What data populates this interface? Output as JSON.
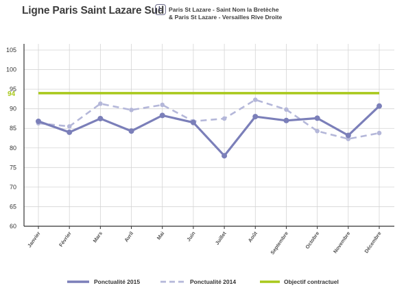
{
  "header": {
    "title": "Ligne Paris Saint Lazare Sud",
    "line_badge": "L",
    "route_1": "Paris St Lazare - Saint Nom la Bretèche",
    "route_2": "& Paris St Lazare - Versailles Rive Droite"
  },
  "chart_data": {
    "type": "line",
    "title": "Ligne Paris Saint Lazare Sud",
    "xlabel": "",
    "ylabel": "",
    "ylim": [
      60,
      105
    ],
    "yticks": [
      60,
      65,
      70,
      75,
      80,
      85,
      90,
      95,
      100,
      105
    ],
    "grid": true,
    "legend_position": "bottom",
    "categories": [
      "Janvier",
      "Février",
      "Mars",
      "Avril",
      "Mai",
      "Juin",
      "Juillet",
      "Août",
      "Septembre",
      "Octobre",
      "Novembre",
      "Décembre"
    ],
    "series": [
      {
        "name": "Ponctualité 2015",
        "style": "solid",
        "color": "#7b7fb9",
        "values": [
          86.8,
          84.0,
          87.5,
          84.3,
          88.3,
          86.5,
          78.0,
          88.0,
          87.0,
          87.6,
          83.2,
          90.7
        ]
      },
      {
        "name": "Ponctualité 2014",
        "style": "dashed",
        "color": "#b4b7d9",
        "values": [
          86.3,
          85.5,
          91.3,
          89.7,
          91.0,
          86.8,
          87.5,
          92.3,
          89.8,
          84.3,
          82.3,
          83.8
        ]
      },
      {
        "name": "Objectif contractuel",
        "style": "solid",
        "color": "#a8c81a",
        "values": [
          94,
          94,
          94,
          94,
          94,
          94,
          94,
          94,
          94,
          94,
          94,
          94
        ]
      }
    ],
    "target_label": "94"
  }
}
